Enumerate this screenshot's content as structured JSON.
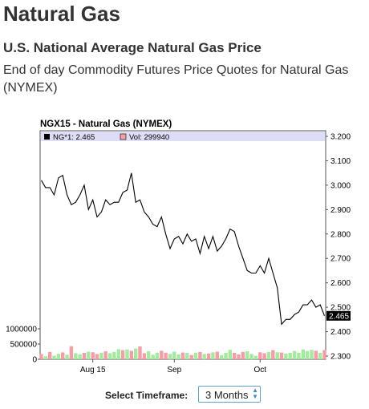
{
  "page": {
    "title": "Natural Gas",
    "subtitle": "U.S. National Average Natural Gas Price",
    "description": "End of day Commodity Futures Price Quotes for Natural Gas (NYMEX)"
  },
  "controls": {
    "timeframe_label": "Select Timeframe:",
    "timeframe_value": "3 Months"
  },
  "colors": {
    "price_line": "#000000",
    "volume_up": "#a6e9a0",
    "volume_down": "#f2a0a8",
    "legend_band": "#ddddf6"
  },
  "chart_data": {
    "type": "line",
    "title": "NGX15 - Natural Gas (NYMEX)",
    "legend": [
      {
        "label": "NG*1: 2.465",
        "color": "#000000"
      },
      {
        "label": "Vol: 299940",
        "color": "#f2a0a8"
      }
    ],
    "last_price_label": "2.465",
    "x_tick_labels": [
      "Aug 15",
      "Sep",
      "Oct"
    ],
    "x_tick_index": [
      12,
      31,
      51
    ],
    "price_axis": {
      "ticks": [
        "3.200",
        "3.100",
        "3.000",
        "2.900",
        "2.800",
        "2.700",
        "2.600",
        "2.500",
        "2.400",
        "2.300"
      ],
      "ylim": [
        2.3,
        3.2
      ],
      "side": "right"
    },
    "volume_axis": {
      "ticks": [
        "1000000",
        "500000",
        "0"
      ],
      "side": "left"
    },
    "series": [
      {
        "name": "NG*1",
        "values": [
          3.02,
          2.99,
          2.99,
          2.96,
          3.03,
          3.04,
          2.96,
          2.92,
          2.93,
          2.96,
          3.0,
          2.9,
          2.94,
          2.87,
          2.89,
          2.94,
          2.92,
          2.93,
          2.93,
          2.97,
          2.98,
          3.05,
          2.93,
          2.94,
          2.89,
          2.87,
          2.84,
          2.83,
          2.87,
          2.8,
          2.74,
          2.78,
          2.79,
          2.76,
          2.8,
          2.77,
          2.78,
          2.72,
          2.79,
          2.74,
          2.79,
          2.73,
          2.75,
          2.78,
          2.82,
          2.81,
          2.75,
          2.7,
          2.65,
          2.64,
          2.64,
          2.67,
          2.64,
          2.7,
          2.64,
          2.58,
          2.43,
          2.45,
          2.45,
          2.47,
          2.48,
          2.51,
          2.51,
          2.53,
          2.5,
          2.51,
          2.465
        ]
      }
    ],
    "volume": [
      170000,
      95000,
      240000,
      120000,
      180000,
      225000,
      150000,
      430000,
      200000,
      160000,
      210000,
      250000,
      230000,
      175000,
      215000,
      260000,
      200000,
      240000,
      330000,
      300000,
      320000,
      280000,
      350000,
      420000,
      200000,
      260000,
      150000,
      215000,
      280000,
      215000,
      175000,
      250000,
      160000,
      220000,
      210000,
      140000,
      215000,
      240000,
      175000,
      190000,
      230000,
      250000,
      140000,
      210000,
      310000,
      210000,
      160000,
      240000,
      260000,
      175000,
      115000,
      230000,
      200000,
      240000,
      300000,
      230000,
      220000,
      190000,
      210000,
      270000,
      215000,
      320000,
      270000,
      310000,
      280000,
      210000,
      300000
    ],
    "volume_up": [
      false,
      true,
      false,
      true,
      true,
      false,
      true,
      false,
      true,
      true,
      false,
      true,
      false,
      false,
      true,
      false,
      true,
      true,
      true,
      false,
      true,
      false,
      true,
      false,
      false,
      true,
      true,
      true,
      false,
      false,
      true,
      true,
      true,
      false,
      true,
      false,
      true,
      false,
      true,
      false,
      true,
      false,
      true,
      true,
      true,
      false,
      false,
      false,
      true,
      true,
      true,
      false,
      false,
      true,
      false,
      true,
      false,
      true,
      true,
      true,
      true,
      true,
      true,
      true,
      false,
      true,
      false
    ],
    "grid": false
  }
}
